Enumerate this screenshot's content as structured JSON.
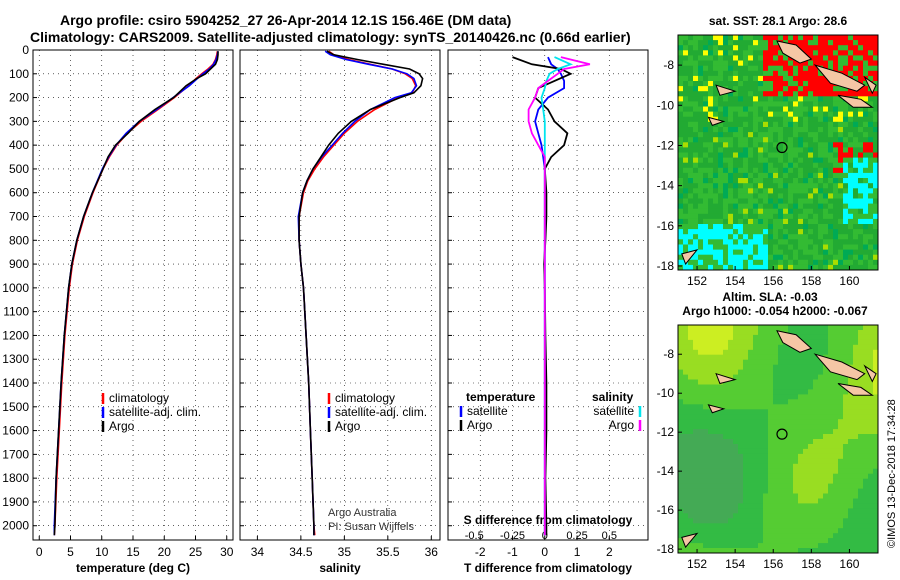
{
  "header": {
    "line1": "Argo profile: csiro 5904252_27 26-Apr-2014 12.1S 156.46E (DM data)",
    "line2": "Climatology: CARS2009. Satellite-adjusted climatology: synTS_20140426.nc (0.66d earlier)"
  },
  "credit": "©IMOS 13-Dec-2018 17:34:28",
  "credit2": "Argo Australia",
  "credit3": "PI: Susan Wijffels",
  "colors": {
    "climatology": "#ff0000",
    "satellite": "#0000ff",
    "argo": "#000000",
    "sat_salinity": "#00e5ee",
    "argo_salinity": "#ff00ff"
  },
  "chart_data": [
    {
      "id": "temperature",
      "type": "line",
      "xlabel": "temperature (deg C)",
      "ylabel": "",
      "xlim": [
        -1,
        31
      ],
      "ylim": [
        2060,
        0
      ],
      "xticks": [
        "0",
        "5",
        "10",
        "15",
        "20",
        "25",
        "30"
      ],
      "yticks": [
        "0",
        "100",
        "200",
        "300",
        "400",
        "500",
        "600",
        "700",
        "800",
        "900",
        "1000",
        "1100",
        "1200",
        "1300",
        "1400",
        "1500",
        "1600",
        "1700",
        "1800",
        "1900",
        "2000"
      ],
      "legend": [
        "climatology",
        "satellite-adj. clim.",
        "Argo"
      ],
      "depth": [
        5,
        20,
        40,
        60,
        80,
        100,
        120,
        150,
        200,
        250,
        300,
        350,
        400,
        450,
        500,
        600,
        700,
        800,
        900,
        1000,
        1200,
        1400,
        1600,
        1800,
        2000,
        2040
      ],
      "series": [
        {
          "name": "climatology",
          "values": [
            28.5,
            28.4,
            28.2,
            27.8,
            27.0,
            26.0,
            25.1,
            23.9,
            21.6,
            19.0,
            16.3,
            14.1,
            12.4,
            11.2,
            10.2,
            8.6,
            7.2,
            6.1,
            5.3,
            4.8,
            4.1,
            3.6,
            3.2,
            2.8,
            2.5,
            2.4
          ]
        },
        {
          "name": "satellite-adj. clim.",
          "values": [
            28.6,
            28.5,
            28.3,
            27.9,
            27.2,
            26.2,
            25.3,
            24.0,
            21.4,
            18.8,
            16.0,
            13.9,
            12.3,
            11.1,
            10.1,
            8.5,
            7.1,
            6.0,
            5.2,
            4.7,
            4.0,
            3.5,
            3.1,
            2.7,
            2.4,
            2.4
          ]
        },
        {
          "name": "Argo",
          "values": [
            28.6,
            28.6,
            28.5,
            28.2,
            27.4,
            26.6,
            25.2,
            23.5,
            21.5,
            18.5,
            16.0,
            14.2,
            12.2,
            11.0,
            10.2,
            8.5,
            7.1,
            6.0,
            5.2,
            4.7,
            4.0,
            3.5,
            3.1,
            2.7,
            2.5,
            2.4
          ]
        }
      ]
    },
    {
      "id": "salinity",
      "type": "line",
      "xlabel": "salinity",
      "xlim": [
        33.8,
        36.1
      ],
      "ylim": [
        2060,
        0
      ],
      "xticks": [
        "34",
        "34.5",
        "35",
        "35.5",
        "36"
      ],
      "legend": [
        "climatology",
        "satellite-adj. clim.",
        "Argo"
      ],
      "depth": [
        5,
        20,
        40,
        60,
        80,
        100,
        120,
        150,
        180,
        200,
        250,
        300,
        350,
        400,
        450,
        500,
        550,
        600,
        700,
        800,
        900,
        1000,
        1200,
        1400,
        1600,
        1800,
        2000,
        2040
      ],
      "series": [
        {
          "name": "climatology",
          "values": [
            34.82,
            34.88,
            35.05,
            35.3,
            35.55,
            35.7,
            35.78,
            35.82,
            35.78,
            35.62,
            35.35,
            35.15,
            35.0,
            34.88,
            34.76,
            34.66,
            34.58,
            34.53,
            34.48,
            34.48,
            34.5,
            34.53,
            34.56,
            34.59,
            34.61,
            34.63,
            34.65,
            34.66
          ]
        },
        {
          "name": "satellite-adj. clim.",
          "values": [
            34.78,
            34.84,
            35.02,
            35.28,
            35.55,
            35.72,
            35.8,
            35.83,
            35.77,
            35.58,
            35.3,
            35.12,
            34.98,
            34.86,
            34.74,
            34.64,
            34.57,
            34.52,
            34.47,
            34.48,
            34.5,
            34.53,
            34.56,
            34.59,
            34.61,
            34.63,
            34.65,
            34.65
          ]
        },
        {
          "name": "Argo",
          "values": [
            34.8,
            34.88,
            35.15,
            35.45,
            35.75,
            35.86,
            35.9,
            35.88,
            35.8,
            35.64,
            35.3,
            35.08,
            34.93,
            34.82,
            34.73,
            34.64,
            34.57,
            34.52,
            34.48,
            34.48,
            34.5,
            34.53,
            34.56,
            34.59,
            34.61,
            34.63,
            34.65,
            34.65
          ]
        }
      ]
    },
    {
      "id": "differences",
      "type": "line",
      "xlabel": "T difference from climatology",
      "xlabel_top": "S difference from climatology",
      "xlim": [
        -3,
        3.2
      ],
      "ylim": [
        2060,
        0
      ],
      "xticks": [
        "-2",
        "-1",
        "0",
        "1",
        "2"
      ],
      "xticks_top": [
        "-0.5",
        "-0.25",
        "0",
        "0.25",
        "0.5"
      ],
      "legend_left_title": "temperature",
      "legend_right_title": "salinity",
      "legend_left": [
        "satellite",
        "Argo"
      ],
      "legend_right": [
        "satellite",
        "Argo"
      ],
      "depth": [
        30,
        60,
        80,
        100,
        130,
        160,
        200,
        250,
        300,
        350,
        400,
        450,
        500,
        600,
        700,
        800,
        900,
        1000,
        1200,
        1400,
        1600,
        1800,
        2000,
        2040
      ],
      "series": [
        {
          "name": "T satellite",
          "values": [
            0.1,
            0.2,
            0.4,
            0.5,
            0.6,
            0.6,
            0.1,
            -0.2,
            -0.3,
            -0.2,
            -0.1,
            -0.05,
            0,
            0,
            0,
            0,
            0,
            0,
            0,
            0,
            0,
            0,
            0,
            0
          ]
        },
        {
          "name": "T Argo",
          "values": [
            -1.0,
            -0.4,
            0.5,
            0.8,
            0.3,
            -0.2,
            -0.3,
            0.1,
            0.3,
            0.7,
            0.6,
            0.2,
            0.0,
            0.05,
            0.05,
            0.02,
            -0.02,
            0,
            0.02,
            0.05,
            0.05,
            0.02,
            0.05,
            0.05
          ]
        },
        {
          "name": "S satellite",
          "values": [
            0.3,
            0.8,
            0.4,
            0.15,
            0.05,
            0,
            -0.1,
            -0.05,
            0,
            0,
            0,
            0,
            0,
            0,
            0,
            0,
            0,
            0,
            0,
            0,
            0,
            0,
            0,
            0
          ]
        },
        {
          "name": "S Argo",
          "values": [
            0.5,
            1.4,
            0.6,
            0.4,
            0.1,
            -0.2,
            -0.3,
            -0.5,
            -0.5,
            -0.4,
            -0.2,
            0,
            0,
            0,
            0,
            0,
            0,
            0,
            0,
            0,
            0,
            0,
            0,
            0
          ]
        }
      ]
    },
    {
      "id": "sst_map",
      "type": "heatmap",
      "title": "sat. SST: 28.1 Argo: 28.6",
      "xticks": [
        "152",
        "154",
        "156",
        "158",
        "160"
      ],
      "yticks": [
        "-8",
        "-10",
        "-12",
        "-14",
        "-16",
        "-18"
      ],
      "xlim": [
        151,
        161.5
      ],
      "ylim": [
        -18.2,
        -6.5
      ],
      "argo_position": [
        156.46,
        -12.1
      ]
    },
    {
      "id": "sla_map",
      "type": "heatmap",
      "title": "Altim. SLA: -0.03",
      "subtitle": "Argo h1000: -0.054 h2000: -0.067",
      "xticks": [
        "152",
        "154",
        "156",
        "158",
        "160"
      ],
      "yticks": [
        "-8",
        "-10",
        "-12",
        "-14",
        "-16",
        "-18"
      ],
      "xlim": [
        151,
        161.5
      ],
      "ylim": [
        -18.2,
        -6.5
      ],
      "argo_position": [
        156.46,
        -12.1
      ]
    }
  ]
}
